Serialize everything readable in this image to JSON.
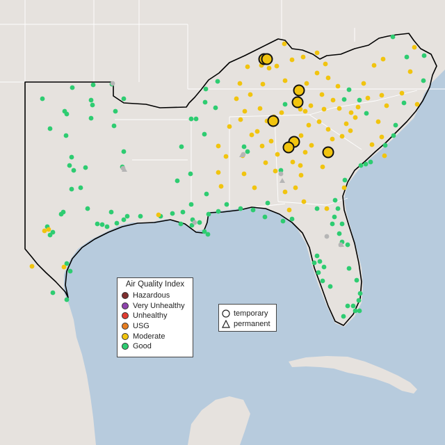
{
  "legend_aqi": {
    "title": "Air Quality Index",
    "items": [
      {
        "label": "Hazardous",
        "color": "#7e2f2f"
      },
      {
        "label": "Very Unhealthy",
        "color": "#8e44ad"
      },
      {
        "label": "Unhealthy",
        "color": "#e03c31"
      },
      {
        "label": "USG",
        "color": "#e67e22"
      },
      {
        "label": "Moderate",
        "color": "#f1c40f"
      },
      {
        "label": "Good",
        "color": "#2ecc71"
      }
    ]
  },
  "legend_type": {
    "items": [
      {
        "label": "temporary",
        "icon": "circle-icon"
      },
      {
        "label": "permanent",
        "icon": "triangle-icon"
      }
    ]
  },
  "colors": {
    "water": "#b7cbdd",
    "land": "#e6e2de",
    "highlight_region_border": "#000000",
    "no_data": "#b5b5b5"
  }
}
